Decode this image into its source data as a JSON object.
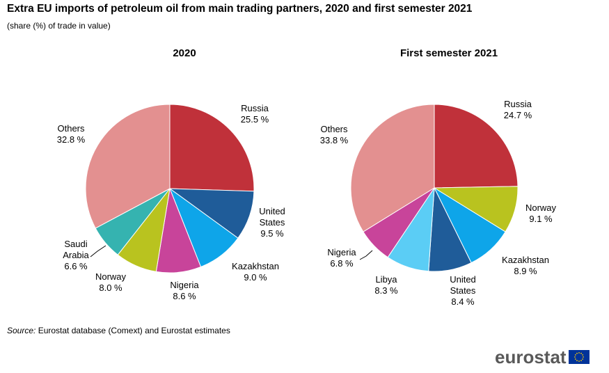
{
  "title": "Extra EU imports of petroleum oil from main trading partners, 2020 and first semester 2021",
  "subtitle": "(share (%) of trade in value)",
  "source": {
    "label": "Source:",
    "text": "Eurostat database (Comext) and Eurostat estimates"
  },
  "logo": {
    "text": "eurostat",
    "flag_color": "#003399",
    "star_color": "#FFCC00"
  },
  "chart_data": [
    {
      "type": "pie",
      "title": "2020",
      "start_angle_deg": 0,
      "direction": "clockwise",
      "slices": [
        {
          "label": [
            "Russia"
          ],
          "value": 25.5,
          "value_text": "25.5 %",
          "color": "#C0313A"
        },
        {
          "label": [
            "United",
            "States"
          ],
          "value": 9.5,
          "value_text": "9.5 %",
          "color": "#1F5C99"
        },
        {
          "label": [
            "Kazakhstan"
          ],
          "value": 9.0,
          "value_text": "9.0 %",
          "color": "#0EA5E9"
        },
        {
          "label": [
            "Nigeria"
          ],
          "value": 8.6,
          "value_text": "8.6 %",
          "color": "#C8449A"
        },
        {
          "label": [
            "Norway"
          ],
          "value": 8.0,
          "value_text": "8.0 %",
          "color": "#B9C31F"
        },
        {
          "label": [
            "Saudi",
            "Arabia"
          ],
          "value": 6.6,
          "value_text": "6.6 %",
          "color": "#35B3B0"
        },
        {
          "label": [
            "Others"
          ],
          "value": 32.8,
          "value_text": "32.8 %",
          "color": "#E39090"
        }
      ]
    },
    {
      "type": "pie",
      "title": "First semester 2021",
      "start_angle_deg": 0,
      "direction": "clockwise",
      "slices": [
        {
          "label": [
            "Russia"
          ],
          "value": 24.7,
          "value_text": "24.7 %",
          "color": "#C0313A"
        },
        {
          "label": [
            "Norway"
          ],
          "value": 9.1,
          "value_text": "9.1 %",
          "color": "#B9C31F"
        },
        {
          "label": [
            "Kazakhstan"
          ],
          "value": 8.9,
          "value_text": "8.9 %",
          "color": "#0EA5E9"
        },
        {
          "label": [
            "United",
            "States"
          ],
          "value": 8.4,
          "value_text": "8.4 %",
          "color": "#1F5C99"
        },
        {
          "label": [
            "Libya"
          ],
          "value": 8.3,
          "value_text": "8.3 %",
          "color": "#5BCDF5"
        },
        {
          "label": [
            "Nigeria"
          ],
          "value": 6.8,
          "value_text": "6.8 %",
          "color": "#C8449A"
        },
        {
          "label": [
            "Others"
          ],
          "value": 33.8,
          "value_text": "33.8 %",
          "color": "#E39090"
        }
      ]
    }
  ]
}
